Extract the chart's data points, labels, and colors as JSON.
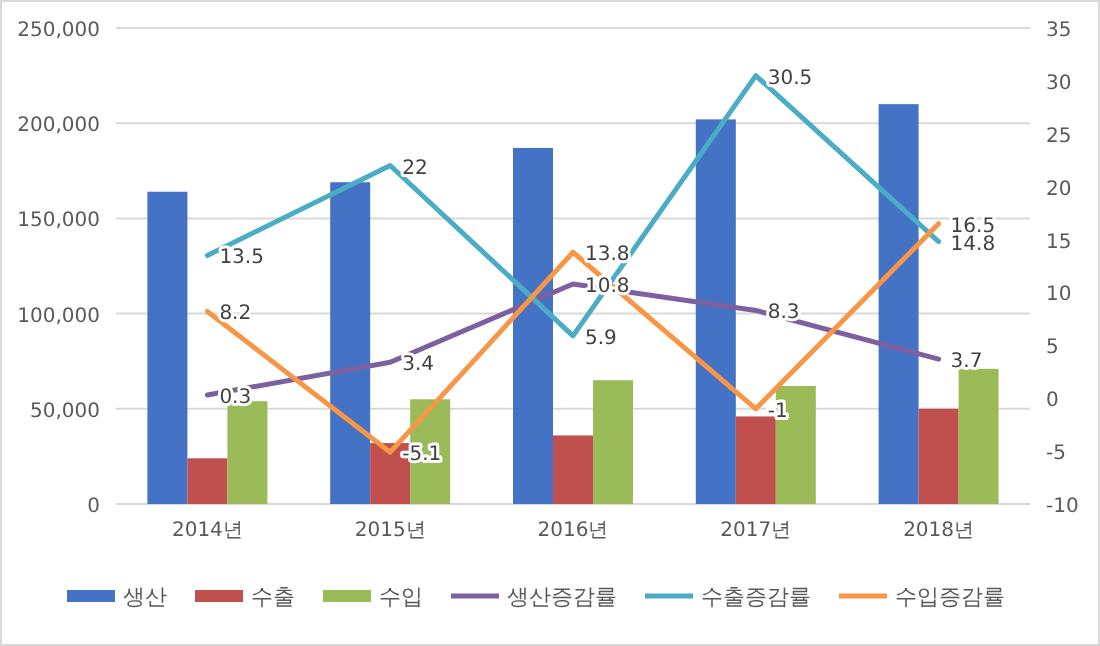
{
  "chart_data": {
    "type": "bar",
    "categories": [
      "2014년",
      "2015년",
      "2016년",
      "2017년",
      "2018년"
    ],
    "series": [
      {
        "name": "생산",
        "color": "#4472c4",
        "values": [
          164000,
          169000,
          187000,
          202000,
          210000
        ]
      },
      {
        "name": "수출",
        "color": "#c0504d",
        "values": [
          24000,
          32000,
          36000,
          46000,
          50000
        ]
      },
      {
        "name": "수입",
        "color": "#9bbb59",
        "values": [
          54000,
          55000,
          65000,
          62000,
          71000
        ]
      },
      {
        "name": "생산증감률",
        "type": "line",
        "axis": "y2",
        "color": "#7d60a0",
        "values": [
          0.3,
          3.4,
          10.8,
          8.3,
          3.7
        ],
        "value_labels": [
          "0.3",
          "3.4",
          "10.8",
          "8.3",
          "3.7"
        ]
      },
      {
        "name": "수출증감률",
        "type": "line",
        "axis": "y2",
        "color": "#4bacc6",
        "values": [
          13.5,
          22,
          5.9,
          30.5,
          14.8
        ],
        "value_labels": [
          "13.5",
          "22",
          "5.9",
          "30.5",
          "14.8"
        ]
      },
      {
        "name": "수입증감률",
        "type": "line",
        "axis": "y2",
        "color": "#f79646",
        "values": [
          8.2,
          -5.1,
          13.8,
          -1,
          16.5
        ],
        "value_labels": [
          "8.2",
          "-5.1",
          "13.8",
          "-1",
          "16.5"
        ]
      }
    ],
    "ylim": [
      0,
      250000
    ],
    "yticks": [
      {
        "value": 0,
        "label": "0"
      },
      {
        "value": 50000,
        "label": "50,000"
      },
      {
        "value": 100000,
        "label": "100,000"
      },
      {
        "value": 150000,
        "label": "150,000"
      },
      {
        "value": 200000,
        "label": "200,000"
      },
      {
        "value": 250000,
        "label": "250,000"
      }
    ],
    "y2lim": [
      -10,
      35
    ],
    "y2ticks": [
      -10,
      -5,
      0,
      5,
      10,
      15,
      20,
      25,
      30,
      35
    ],
    "grid": "y",
    "legend": "bottom"
  }
}
